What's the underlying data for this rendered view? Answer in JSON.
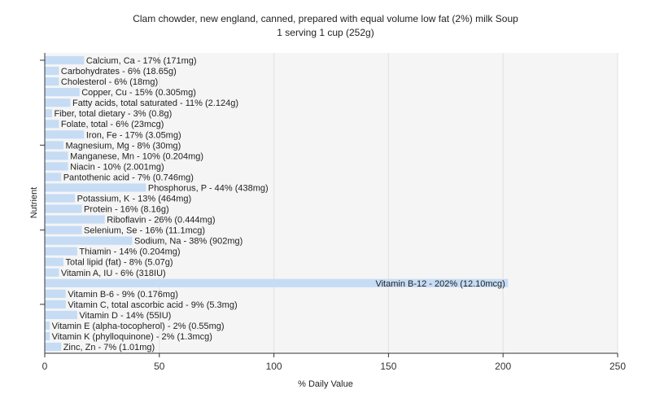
{
  "chart_data": {
    "type": "bar",
    "orientation": "horizontal",
    "title": "Clam chowder, new england, canned, prepared with equal volume low fat (2%) milk Soup",
    "subtitle": "1 serving 1 cup (252g)",
    "xlabel": "% Daily Value",
    "ylabel": "Nutrient",
    "xlim": [
      0,
      250
    ],
    "xticks": [
      0,
      50,
      100,
      150,
      200,
      250
    ],
    "grid": true,
    "bar_color": "#c6dcf5",
    "background_color": "#f5f5f5",
    "bars": [
      {
        "label": "Calcium, Ca - 17% (171mg)",
        "value": 17
      },
      {
        "label": "Carbohydrates - 6% (18.65g)",
        "value": 6
      },
      {
        "label": "Cholesterol - 6% (18mg)",
        "value": 6
      },
      {
        "label": "Copper, Cu - 15% (0.305mg)",
        "value": 15
      },
      {
        "label": "Fatty acids, total saturated - 11% (2.124g)",
        "value": 11
      },
      {
        "label": "Fiber, total dietary - 3% (0.8g)",
        "value": 3
      },
      {
        "label": "Folate, total - 6% (23mcg)",
        "value": 6
      },
      {
        "label": "Iron, Fe - 17% (3.05mg)",
        "value": 17
      },
      {
        "label": "Magnesium, Mg - 8% (30mg)",
        "value": 8
      },
      {
        "label": "Manganese, Mn - 10% (0.204mg)",
        "value": 10
      },
      {
        "label": "Niacin - 10% (2.001mg)",
        "value": 10
      },
      {
        "label": "Pantothenic acid - 7% (0.746mg)",
        "value": 7
      },
      {
        "label": "Phosphorus, P - 44% (438mg)",
        "value": 44
      },
      {
        "label": "Potassium, K - 13% (464mg)",
        "value": 13
      },
      {
        "label": "Protein - 16% (8.16g)",
        "value": 16
      },
      {
        "label": "Riboflavin - 26% (0.444mg)",
        "value": 26
      },
      {
        "label": "Selenium, Se - 16% (11.1mcg)",
        "value": 16
      },
      {
        "label": "Sodium, Na - 38% (902mg)",
        "value": 38
      },
      {
        "label": "Thiamin - 14% (0.204mg)",
        "value": 14
      },
      {
        "label": "Total lipid (fat) - 8% (5.07g)",
        "value": 8
      },
      {
        "label": "Vitamin A, IU - 6% (318IU)",
        "value": 6
      },
      {
        "label": "Vitamin B-12 - 202% (12.10mcg)",
        "value": 202
      },
      {
        "label": "Vitamin B-6 - 9% (0.176mg)",
        "value": 9
      },
      {
        "label": "Vitamin C, total ascorbic acid - 9% (5.3mg)",
        "value": 9
      },
      {
        "label": "Vitamin D - 14% (55IU)",
        "value": 14
      },
      {
        "label": "Vitamin E (alpha-tocopherol) - 2% (0.55mg)",
        "value": 2
      },
      {
        "label": "Vitamin K (phylloquinone) - 2% (1.3mcg)",
        "value": 2
      },
      {
        "label": "Zinc, Zn - 7% (1.01mg)",
        "value": 7
      }
    ]
  }
}
